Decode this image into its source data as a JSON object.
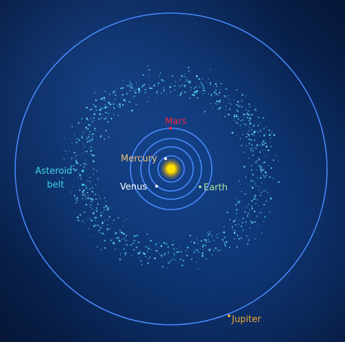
{
  "labels": {
    "mars": "Mars",
    "mercury": "Mercury",
    "venus": "Venus",
    "earth": "Earth",
    "asteroid_belt_line1": "Asteroid",
    "asteroid_belt_line2": "belt",
    "jupiter": "Jupiter"
  },
  "colors": {
    "mars": "#e8284a",
    "mercury": "#e8c27a",
    "venus": "#ffffff",
    "earth": "#a8e0a0",
    "asteroid_belt": "#3fd6e6",
    "jupiter": "#f0a830",
    "sun": "#ffd400",
    "orbit": "#4a8cff"
  }
}
